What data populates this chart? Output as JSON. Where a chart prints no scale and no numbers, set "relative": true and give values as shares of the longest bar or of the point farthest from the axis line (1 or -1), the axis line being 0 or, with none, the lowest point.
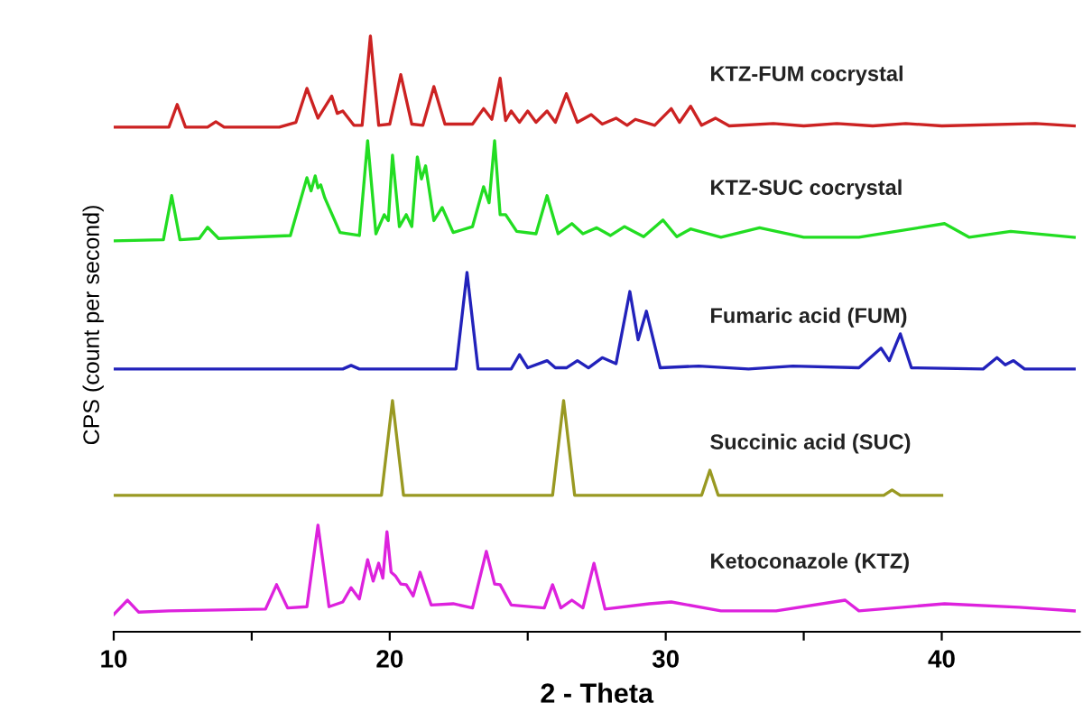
{
  "chart_data": {
    "type": "line",
    "xlabel": "2 - Theta",
    "ylabel": "CPS (count per second)",
    "relative": true,
    "xlim": [
      10,
      45
    ],
    "xticks": [
      10,
      {
        "value": 15,
        "label": null
      },
      20,
      {
        "value": 25,
        "label": null
      },
      30,
      {
        "value": 35,
        "label": null
      },
      40
    ],
    "grid": false,
    "legend": false,
    "marker": "none",
    "line_style": "solid",
    "series": [
      {
        "name": "KTZ-FUM cocrystal",
        "color": "#cc2222",
        "x": [
          10,
          12.0,
          12.3,
          12.6,
          13.4,
          13.7,
          14.0,
          16.0,
          16.6,
          17.0,
          17.4,
          17.9,
          18.1,
          18.3,
          18.7,
          19.0,
          19.3,
          19.6,
          20.0,
          20.4,
          20.8,
          21.2,
          21.6,
          22.0,
          23.0,
          23.4,
          23.7,
          24.0,
          24.2,
          24.4,
          24.7,
          25.0,
          25.3,
          25.7,
          26.0,
          26.4,
          26.8,
          27.3,
          27.7,
          28.2,
          28.6,
          28.9,
          29.6,
          30.2,
          30.5,
          30.9,
          31.3,
          31.8,
          32.3,
          33.9,
          35,
          36.2,
          37.5,
          38.7,
          40,
          43.4,
          44.8
        ],
        "values": [
          0.847,
          0.847,
          0.885,
          0.847,
          0.847,
          0.856,
          0.847,
          0.847,
          0.855,
          0.912,
          0.862,
          0.899,
          0.87,
          0.874,
          0.85,
          0.85,
          1.0,
          0.85,
          0.852,
          0.935,
          0.852,
          0.85,
          0.915,
          0.852,
          0.852,
          0.878,
          0.86,
          0.929,
          0.858,
          0.874,
          0.855,
          0.874,
          0.855,
          0.874,
          0.855,
          0.903,
          0.855,
          0.868,
          0.852,
          0.862,
          0.85,
          0.86,
          0.85,
          0.878,
          0.855,
          0.882,
          0.85,
          0.862,
          0.849,
          0.853,
          0.849,
          0.853,
          0.849,
          0.853,
          0.849,
          0.853,
          0.849
        ]
      },
      {
        "name": "KTZ-SUC cocrystal",
        "color": "#22dd22",
        "x": [
          10,
          11.8,
          12.1,
          12.4,
          13.1,
          13.4,
          13.8,
          16.4,
          17.0,
          17.15,
          17.3,
          17.4,
          17.5,
          17.65,
          17.8,
          18.2,
          18.9,
          19.2,
          19.5,
          19.8,
          19.95,
          20.1,
          20.35,
          20.6,
          20.8,
          21.0,
          21.15,
          21.3,
          21.6,
          21.9,
          22.3,
          23.0,
          23.4,
          23.6,
          23.8,
          24.0,
          24.2,
          24.6,
          25.3,
          25.7,
          26.1,
          26.6,
          27.0,
          27.5,
          28.0,
          28.5,
          29.2,
          29.9,
          30.4,
          30.9,
          32,
          33.4,
          35,
          37,
          40.1,
          41,
          42.5,
          44.8
        ],
        "values": [
          0.656,
          0.658,
          0.732,
          0.658,
          0.66,
          0.679,
          0.66,
          0.665,
          0.762,
          0.74,
          0.765,
          0.745,
          0.75,
          0.728,
          0.712,
          0.67,
          0.665,
          0.824,
          0.668,
          0.7,
          0.69,
          0.8,
          0.68,
          0.7,
          0.68,
          0.797,
          0.76,
          0.782,
          0.69,
          0.712,
          0.67,
          0.68,
          0.747,
          0.72,
          0.824,
          0.7,
          0.7,
          0.672,
          0.668,
          0.732,
          0.668,
          0.685,
          0.668,
          0.678,
          0.665,
          0.68,
          0.663,
          0.691,
          0.663,
          0.676,
          0.662,
          0.678,
          0.662,
          0.662,
          0.685,
          0.662,
          0.672,
          0.662
        ]
      },
      {
        "name": "Fumaric acid (FUM)",
        "color": "#2222bb",
        "x": [
          10,
          18.3,
          18.6,
          18.9,
          22.4,
          22.8,
          23.2,
          24.4,
          24.7,
          25.0,
          25.7,
          26.0,
          26.4,
          26.8,
          27.2,
          27.7,
          28.2,
          28.7,
          29.0,
          29.3,
          29.8,
          31.2,
          33,
          34.6,
          37.0,
          37.8,
          38.1,
          38.5,
          38.9,
          41.5,
          42.0,
          42.3,
          42.6,
          43.0,
          44.8
        ],
        "values": [
          0.441,
          0.441,
          0.447,
          0.441,
          0.441,
          0.603,
          0.441,
          0.441,
          0.465,
          0.443,
          0.455,
          0.443,
          0.443,
          0.455,
          0.443,
          0.46,
          0.45,
          0.571,
          0.49,
          0.538,
          0.443,
          0.446,
          0.441,
          0.446,
          0.443,
          0.476,
          0.455,
          0.5,
          0.443,
          0.441,
          0.46,
          0.448,
          0.455,
          0.441,
          0.441
        ]
      },
      {
        "name": "Succinic acid (SUC)",
        "color": "#999922",
        "x": [
          10,
          19.7,
          20.1,
          20.5,
          25.9,
          26.3,
          26.7,
          31.3,
          31.6,
          31.9,
          37.9,
          38.2,
          38.5,
          40
        ],
        "values": [
          0.229,
          0.229,
          0.388,
          0.229,
          0.229,
          0.388,
          0.229,
          0.229,
          0.271,
          0.229,
          0.229,
          0.238,
          0.229,
          0.229
        ]
      },
      {
        "name": "Ketoconazole (KTZ)",
        "color": "#dd22dd",
        "x": [
          10,
          10.5,
          10.9,
          12,
          15.5,
          15.9,
          16.3,
          17.0,
          17.4,
          17.8,
          18.3,
          18.6,
          18.9,
          19.2,
          19.4,
          19.6,
          19.75,
          19.9,
          20.05,
          20.2,
          20.4,
          20.6,
          20.85,
          21.1,
          21.5,
          22.3,
          23.0,
          23.5,
          23.8,
          24.0,
          24.4,
          25.6,
          25.9,
          26.2,
          26.6,
          27.0,
          27.4,
          27.8,
          29.4,
          30.2,
          32,
          34,
          36.5,
          37,
          40.1,
          42.8,
          44.8
        ],
        "values": [
          0.029,
          0.053,
          0.033,
          0.035,
          0.038,
          0.079,
          0.04,
          0.042,
          0.179,
          0.042,
          0.05,
          0.074,
          0.055,
          0.121,
          0.085,
          0.115,
          0.09,
          0.168,
          0.1,
          0.094,
          0.08,
          0.079,
          0.06,
          0.1,
          0.045,
          0.047,
          0.04,
          0.135,
          0.08,
          0.079,
          0.045,
          0.04,
          0.079,
          0.04,
          0.053,
          0.04,
          0.115,
          0.038,
          0.047,
          0.05,
          0.035,
          0.035,
          0.053,
          0.035,
          0.047,
          0.041,
          0.035
        ]
      }
    ]
  }
}
